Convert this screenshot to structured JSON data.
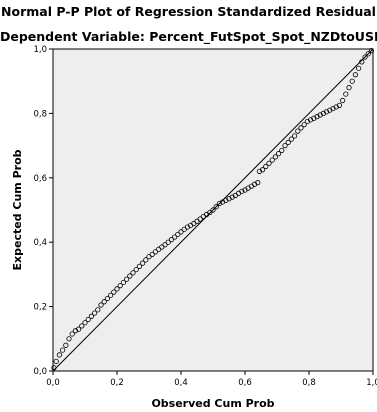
{
  "chart_data": {
    "type": "scatter",
    "title": "Normal P-P Plot of Regression Standardized Residual",
    "subtitle": "Dependent Variable: Percent_FutSpot_Spot_NZDtoUSD",
    "xlabel": "Observed Cum Prob",
    "ylabel": "Expected Cum Prob",
    "xlim": [
      0,
      1
    ],
    "ylim": [
      0,
      1
    ],
    "xticks": [
      0.0,
      0.2,
      0.4,
      0.6,
      0.8,
      1.0
    ],
    "yticks": [
      0.0,
      0.2,
      0.4,
      0.6,
      0.8,
      1.0
    ],
    "xtick_labels": [
      "0,0",
      "0,2",
      "0,4",
      "0,6",
      "0,8",
      "1,0"
    ],
    "ytick_labels": [
      "0,0",
      "0,2",
      "0,4",
      "0,6",
      "0,8",
      "1,0"
    ],
    "reference_line": {
      "from": [
        0,
        0
      ],
      "to": [
        1,
        1
      ]
    },
    "grid": false,
    "colors": {
      "plot_background": "#eeeeee",
      "points": "#000000",
      "line": "#000000"
    },
    "series": [
      {
        "x": [
          0.003,
          0.01,
          0.02,
          0.03,
          0.04,
          0.05,
          0.06,
          0.07,
          0.08,
          0.09,
          0.1,
          0.11,
          0.12,
          0.13,
          0.14,
          0.15,
          0.16,
          0.17,
          0.18,
          0.19,
          0.2,
          0.21,
          0.22,
          0.23,
          0.24,
          0.25,
          0.26,
          0.27,
          0.28,
          0.29,
          0.3,
          0.31,
          0.32,
          0.33,
          0.34,
          0.35,
          0.36,
          0.37,
          0.38,
          0.39,
          0.4,
          0.41,
          0.42,
          0.43,
          0.44,
          0.45,
          0.46,
          0.47,
          0.48,
          0.49,
          0.5,
          0.51,
          0.52,
          0.53,
          0.54,
          0.55,
          0.56,
          0.57,
          0.58,
          0.59,
          0.6,
          0.61,
          0.62,
          0.63,
          0.64,
          0.645,
          0.655,
          0.665,
          0.675,
          0.685,
          0.695,
          0.705,
          0.715,
          0.725,
          0.735,
          0.745,
          0.755,
          0.765,
          0.775,
          0.785,
          0.795,
          0.805,
          0.815,
          0.825,
          0.835,
          0.845,
          0.855,
          0.865,
          0.875,
          0.885,
          0.895,
          0.905,
          0.915,
          0.925,
          0.935,
          0.945,
          0.955,
          0.965,
          0.975,
          0.985,
          0.995
        ],
        "y": [
          0.01,
          0.03,
          0.05,
          0.065,
          0.08,
          0.1,
          0.115,
          0.125,
          0.13,
          0.14,
          0.15,
          0.16,
          0.17,
          0.18,
          0.19,
          0.205,
          0.215,
          0.225,
          0.235,
          0.245,
          0.255,
          0.265,
          0.275,
          0.285,
          0.295,
          0.305,
          0.315,
          0.325,
          0.335,
          0.345,
          0.355,
          0.362,
          0.37,
          0.378,
          0.385,
          0.392,
          0.4,
          0.408,
          0.416,
          0.424,
          0.432,
          0.44,
          0.447,
          0.452,
          0.458,
          0.465,
          0.472,
          0.48,
          0.486,
          0.492,
          0.5,
          0.51,
          0.52,
          0.525,
          0.53,
          0.535,
          0.54,
          0.545,
          0.552,
          0.558,
          0.562,
          0.568,
          0.574,
          0.58,
          0.585,
          0.62,
          0.625,
          0.635,
          0.645,
          0.655,
          0.665,
          0.675,
          0.685,
          0.7,
          0.71,
          0.72,
          0.73,
          0.745,
          0.755,
          0.765,
          0.775,
          0.78,
          0.785,
          0.79,
          0.795,
          0.8,
          0.805,
          0.81,
          0.815,
          0.82,
          0.825,
          0.84,
          0.86,
          0.88,
          0.9,
          0.92,
          0.94,
          0.96,
          0.975,
          0.985,
          0.995
        ]
      }
    ]
  }
}
